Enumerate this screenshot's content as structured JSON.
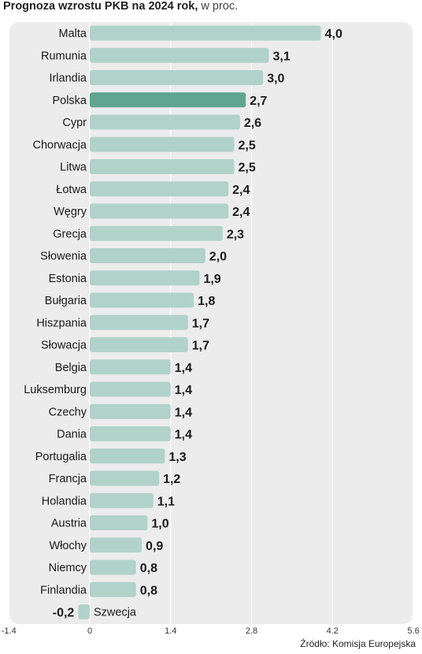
{
  "title": {
    "bold": "Prognoza wzrostu PKB na 2024 rok,",
    "light": "w proc."
  },
  "source": "Źródło: Komisja Europejska",
  "colors": {
    "bar": "#b1d2cb",
    "highlight": "#5fa592",
    "panel": "#ececec",
    "gridline": "#ffffff"
  },
  "chart_data": {
    "type": "bar",
    "orientation": "horizontal",
    "categories": [
      "Malta",
      "Rumunia",
      "Irlandia",
      "Polska",
      "Cypr",
      "Chorwacja",
      "Litwa",
      "Łotwa",
      "Węgry",
      "Grecja",
      "Słowenia",
      "Estonia",
      "Bułgaria",
      "Hiszpania",
      "Słowacja",
      "Belgia",
      "Luksemburg",
      "Czechy",
      "Dania",
      "Portugalia",
      "Francja",
      "Holandia",
      "Austria",
      "Włochy",
      "Niemcy",
      "Finlandia",
      "Szwecja"
    ],
    "values": [
      4.0,
      3.1,
      3.0,
      2.7,
      2.6,
      2.5,
      2.5,
      2.4,
      2.4,
      2.3,
      2.0,
      1.9,
      1.8,
      1.7,
      1.7,
      1.4,
      1.4,
      1.4,
      1.4,
      1.3,
      1.2,
      1.1,
      1.0,
      0.9,
      0.8,
      0.8,
      -0.2
    ],
    "value_labels": [
      "4,0",
      "3,1",
      "3,0",
      "2,7",
      "2,6",
      "2,5",
      "2,5",
      "2,4",
      "2,4",
      "2,3",
      "2,0",
      "1,9",
      "1,8",
      "1,7",
      "1,7",
      "1,4",
      "1,4",
      "1,4",
      "1,4",
      "1,3",
      "1,2",
      "1,1",
      "1,0",
      "0,9",
      "0,8",
      "0,8",
      "-0,2"
    ],
    "highlight": "Polska",
    "xlim": [
      -1.4,
      5.6
    ],
    "xticks": [
      -1.4,
      0,
      1.4,
      2.8,
      4.2,
      5.6
    ],
    "xtick_labels": [
      "-1.4",
      "0",
      "1.4",
      "2.8",
      "4.2",
      "5.6"
    ],
    "grid": true,
    "legend": "none"
  }
}
